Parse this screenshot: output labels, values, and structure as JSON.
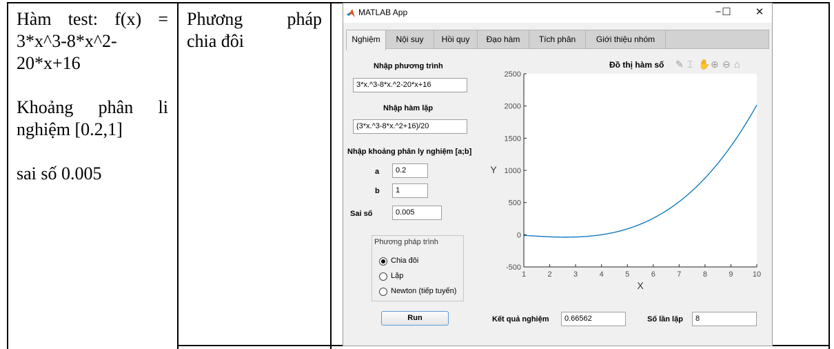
{
  "doc": {
    "col1_line1": "Hàm test: f(x) =",
    "col1_line2": "3*x^3-8*x^2-",
    "col1_line3": "20*x+16",
    "col1_line4": "Khoảng phân li",
    "col1_line5": "nghiệm [0.2,1]",
    "col1_line6": "sai số 0.005",
    "col2_line1": "Phương pháp",
    "col2_line2": "chia đôi"
  },
  "app": {
    "title": "MATLAB App",
    "controls": {
      "minimize": "−",
      "maximize": "☐",
      "close": "✕"
    },
    "tabs": [
      {
        "label": "Nghiệm",
        "active": true
      },
      {
        "label": "Nội suy"
      },
      {
        "label": "Hồi quy"
      },
      {
        "label": "Đạo hàm"
      },
      {
        "label": "Tích phân"
      },
      {
        "label": "Giới thiệu nhóm"
      }
    ],
    "form": {
      "equation_label": "Nhập phương trình",
      "equation_value": "3*x.^3-8*x.^2-20*x+16",
      "iter_label": "Nhập hàm lặp",
      "iter_value": "(3*x.^3-8*x.^2+16)/20",
      "interval_label": "Nhập khoảng phân ly nghiệm [a;b]",
      "a_label": "a",
      "a_value": "0.2",
      "b_label": "b",
      "b_value": "1",
      "tol_label": "Sai số",
      "tol_value": "0.005"
    },
    "method": {
      "title": "Phương pháp trình",
      "options": [
        {
          "label": "Chia đôi",
          "selected": true
        },
        {
          "label": "Lặp",
          "selected": false
        },
        {
          "label": "Newton (tiếp tuyến)",
          "selected": false
        }
      ]
    },
    "run_label": "Run",
    "result_label": "Kết quả nghiệm",
    "result_value": "0.66562",
    "iter_count_label": "Số lần lặp",
    "iter_count_value": "8"
  },
  "chart_data": {
    "type": "line",
    "title": "Đồ thị hàm số",
    "xlabel": "X",
    "ylabel": "Y",
    "xlim": [
      1,
      10
    ],
    "ylim": [
      -500,
      2500
    ],
    "xticks": [
      1,
      2,
      3,
      4,
      5,
      6,
      7,
      8,
      9,
      10
    ],
    "yticks": [
      -500,
      0,
      500,
      1000,
      1500,
      2000,
      2500
    ],
    "series": [
      {
        "function": "3*x^3-8*x^2-20*x+16",
        "x_range": [
          1,
          10
        ],
        "color": "#0072bd"
      }
    ],
    "toolbar_icons": [
      "brush-icon",
      "data-tip-icon",
      "pan-icon",
      "zoom-in-icon",
      "zoom-out-icon",
      "home-icon"
    ]
  }
}
